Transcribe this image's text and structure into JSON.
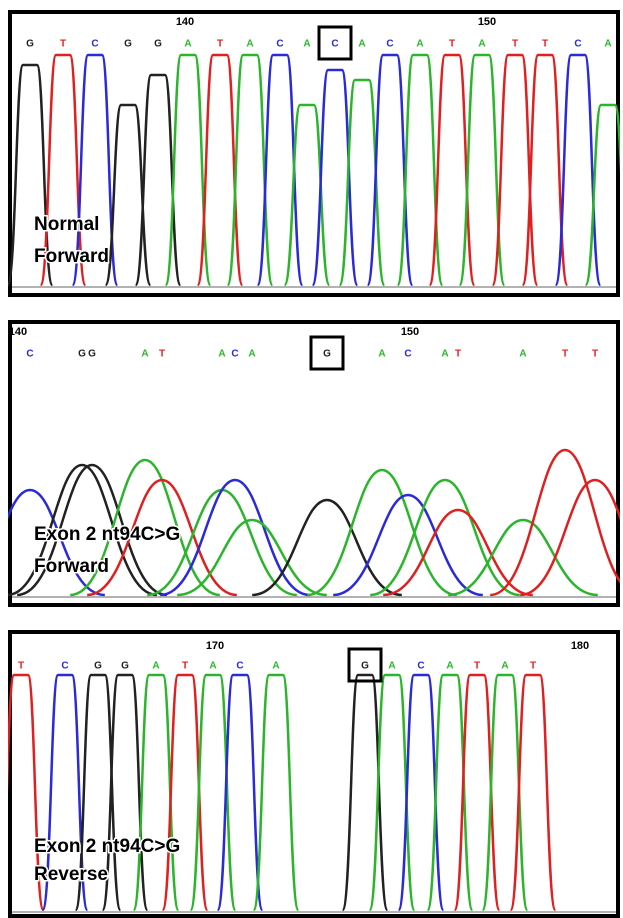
{
  "panels": [
    {
      "positions": [
        "140",
        "150"
      ],
      "bases": [
        "G",
        "T",
        "C",
        "G",
        "G",
        "A",
        "T",
        "A",
        "C",
        "A",
        "C",
        "A",
        "C",
        "A",
        "T",
        "A",
        "T",
        "T",
        "C",
        "A"
      ],
      "label": [
        "Normal",
        "Forward"
      ]
    },
    {
      "positions": [
        "140",
        "150"
      ],
      "bases": [
        "C",
        "G",
        "G",
        "A",
        "T",
        "A",
        "C",
        "A",
        "G",
        "A",
        "C",
        "A",
        "T",
        "A",
        "T",
        "T"
      ],
      "label": [
        "Exon 2 nt94C>G",
        "Forward"
      ]
    },
    {
      "positions": [
        "170",
        "180"
      ],
      "bases": [
        "T",
        "C",
        "G",
        "G",
        "A",
        "T",
        "A",
        "C",
        "A",
        "G",
        "A",
        "C",
        "A",
        "T",
        "A",
        "T"
      ],
      "label": [
        "Exon 2 nt94C>G",
        "Reverse"
      ]
    }
  ]
}
